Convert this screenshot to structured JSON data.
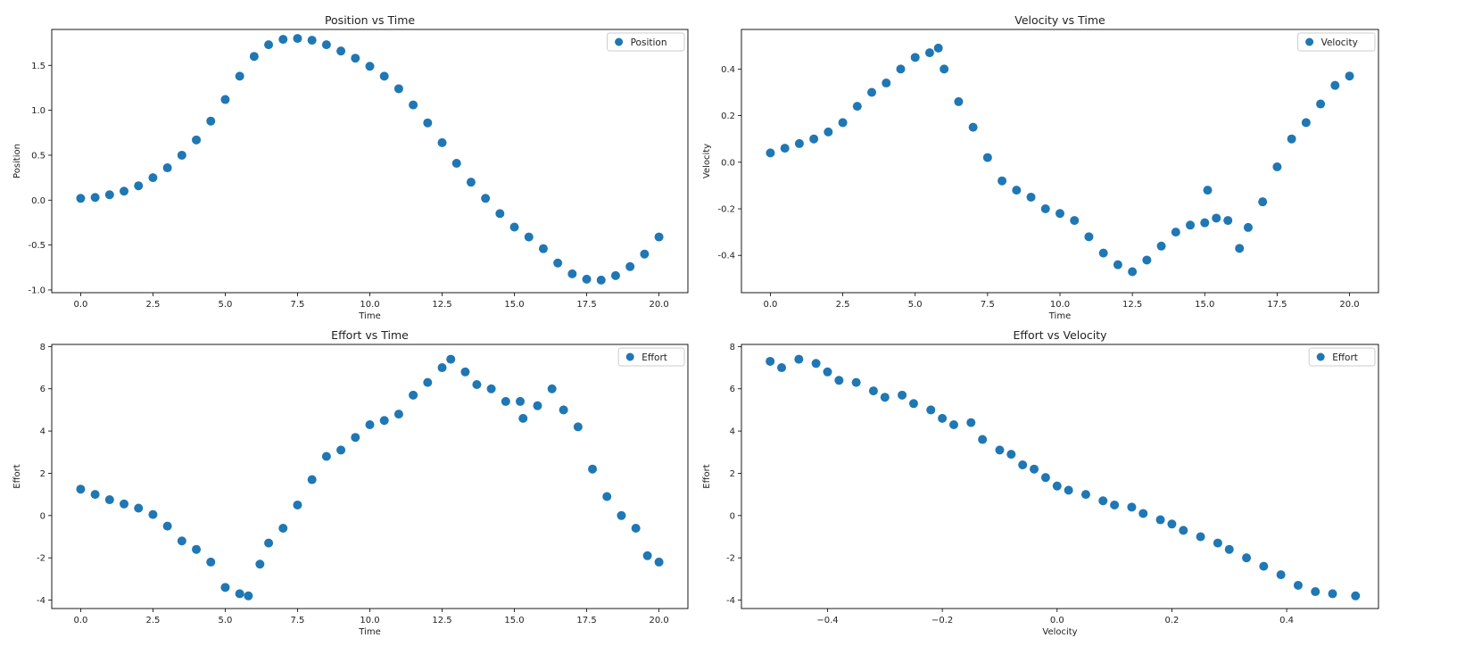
{
  "chart_data": [
    {
      "type": "scatter",
      "title": "Position vs Time",
      "xlabel": "Time",
      "ylabel": "Position",
      "xlim": [
        -1,
        21
      ],
      "ylim": [
        -1.03,
        1.9
      ],
      "xticks": [
        "0.0",
        "2.5",
        "5.0",
        "7.5",
        "10.0",
        "12.5",
        "15.0",
        "17.5",
        "20.0"
      ],
      "yticks": [
        "-1.0",
        "-0.5",
        "0.0",
        "0.5",
        "1.0",
        "1.5"
      ],
      "legend": "top-right",
      "grid": false,
      "color": "#1f77b4",
      "series": [
        {
          "name": "Position",
          "points": [
            [
              0,
              0.02
            ],
            [
              0.5,
              0.03
            ],
            [
              1,
              0.06
            ],
            [
              1.5,
              0.1
            ],
            [
              2,
              0.16
            ],
            [
              2.5,
              0.25
            ],
            [
              3,
              0.36
            ],
            [
              3.5,
              0.5
            ],
            [
              4,
              0.67
            ],
            [
              4.5,
              0.88
            ],
            [
              5,
              1.12
            ],
            [
              5.5,
              1.38
            ],
            [
              6,
              1.6
            ],
            [
              6.5,
              1.73
            ],
            [
              7,
              1.79
            ],
            [
              7.5,
              1.8
            ],
            [
              8,
              1.78
            ],
            [
              8.5,
              1.73
            ],
            [
              9,
              1.66
            ],
            [
              9.5,
              1.58
            ],
            [
              10,
              1.49
            ],
            [
              10.5,
              1.38
            ],
            [
              11,
              1.24
            ],
            [
              11.5,
              1.06
            ],
            [
              12,
              0.86
            ],
            [
              12.5,
              0.64
            ],
            [
              13,
              0.41
            ],
            [
              13.5,
              0.2
            ],
            [
              14,
              0.02
            ],
            [
              14.5,
              -0.15
            ],
            [
              15,
              -0.3
            ],
            [
              15.5,
              -0.41
            ],
            [
              16,
              -0.54
            ],
            [
              16.5,
              -0.7
            ],
            [
              17,
              -0.82
            ],
            [
              17.5,
              -0.88
            ],
            [
              18,
              -0.89
            ],
            [
              18.5,
              -0.84
            ],
            [
              19,
              -0.74
            ],
            [
              19.5,
              -0.6
            ],
            [
              20,
              -0.41
            ]
          ]
        }
      ]
    },
    {
      "type": "scatter",
      "title": "Velocity vs Time",
      "xlabel": "Time",
      "ylabel": "Velocity",
      "xlim": [
        -1,
        21
      ],
      "ylim": [
        -0.56,
        0.57
      ],
      "xticks": [
        "0.0",
        "2.5",
        "5.0",
        "7.5",
        "10.0",
        "12.5",
        "15.0",
        "17.5",
        "20.0"
      ],
      "yticks": [
        "-0.4",
        "-0.2",
        "0.0",
        "0.2",
        "0.4"
      ],
      "legend": "top-right",
      "grid": false,
      "color": "#1f77b4",
      "series": [
        {
          "name": "Velocity",
          "points": [
            [
              0,
              0.04
            ],
            [
              0.5,
              0.06
            ],
            [
              1,
              0.08
            ],
            [
              1.5,
              0.1
            ],
            [
              2,
              0.13
            ],
            [
              2.5,
              0.17
            ],
            [
              3,
              0.24
            ],
            [
              3.5,
              0.3
            ],
            [
              4,
              0.34
            ],
            [
              4.5,
              0.4
            ],
            [
              5,
              0.45
            ],
            [
              5.5,
              0.47
            ],
            [
              5.8,
              0.49
            ],
            [
              6,
              0.4
            ],
            [
              6.5,
              0.26
            ],
            [
              7,
              0.15
            ],
            [
              7.5,
              0.02
            ],
            [
              8,
              -0.08
            ],
            [
              8.5,
              -0.12
            ],
            [
              9,
              -0.15
            ],
            [
              9.5,
              -0.2
            ],
            [
              10,
              -0.22
            ],
            [
              10.5,
              -0.25
            ],
            [
              11,
              -0.32
            ],
            [
              11.5,
              -0.39
            ],
            [
              12,
              -0.44
            ],
            [
              12.5,
              -0.47
            ],
            [
              13,
              -0.42
            ],
            [
              13.5,
              -0.36
            ],
            [
              14,
              -0.3
            ],
            [
              14.5,
              -0.27
            ],
            [
              15,
              -0.26
            ],
            [
              15.1,
              -0.12
            ],
            [
              15.4,
              -0.24
            ],
            [
              15.8,
              -0.25
            ],
            [
              16.2,
              -0.37
            ],
            [
              16.5,
              -0.28
            ],
            [
              17,
              -0.17
            ],
            [
              17.5,
              -0.02
            ],
            [
              18,
              0.1
            ],
            [
              18.5,
              0.17
            ],
            [
              19,
              0.25
            ],
            [
              19.5,
              0.33
            ],
            [
              20,
              0.37
            ]
          ]
        }
      ]
    },
    {
      "type": "scatter",
      "title": "Effort vs Time",
      "xlabel": "Time",
      "ylabel": "Effort",
      "xlim": [
        -1,
        21
      ],
      "ylim": [
        -4.4,
        8.1
      ],
      "xticks": [
        "0.0",
        "2.5",
        "5.0",
        "7.5",
        "10.0",
        "12.5",
        "15.0",
        "17.5",
        "20.0"
      ],
      "yticks": [
        "-4",
        "-2",
        "0",
        "2",
        "4",
        "6",
        "8"
      ],
      "legend": "top-right",
      "grid": false,
      "color": "#1f77b4",
      "series": [
        {
          "name": "Effort",
          "points": [
            [
              0,
              1.25
            ],
            [
              0.5,
              1.0
            ],
            [
              1,
              0.75
            ],
            [
              1.5,
              0.55
            ],
            [
              2,
              0.35
            ],
            [
              2.5,
              0.05
            ],
            [
              3,
              -0.5
            ],
            [
              3.5,
              -1.2
            ],
            [
              4,
              -1.6
            ],
            [
              4.5,
              -2.2
            ],
            [
              5,
              -3.4
            ],
            [
              5.5,
              -3.7
            ],
            [
              5.8,
              -3.8
            ],
            [
              6.2,
              -2.3
            ],
            [
              6.5,
              -1.3
            ],
            [
              7,
              -0.6
            ],
            [
              7.5,
              0.5
            ],
            [
              8,
              1.7
            ],
            [
              8.5,
              2.8
            ],
            [
              9,
              3.1
            ],
            [
              9.5,
              3.7
            ],
            [
              10,
              4.3
            ],
            [
              10.5,
              4.5
            ],
            [
              11,
              4.8
            ],
            [
              11.5,
              5.7
            ],
            [
              12,
              6.3
            ],
            [
              12.5,
              7.0
            ],
            [
              12.8,
              7.4
            ],
            [
              13.3,
              6.8
            ],
            [
              13.7,
              6.2
            ],
            [
              14.2,
              6.0
            ],
            [
              14.7,
              5.4
            ],
            [
              15.2,
              5.4
            ],
            [
              15.3,
              4.6
            ],
            [
              15.8,
              5.2
            ],
            [
              16.3,
              6.0
            ],
            [
              16.7,
              5.0
            ],
            [
              17.2,
              4.2
            ],
            [
              17.7,
              2.2
            ],
            [
              18.2,
              0.9
            ],
            [
              18.7,
              0.0
            ],
            [
              19.2,
              -0.6
            ],
            [
              19.6,
              -1.9
            ],
            [
              20,
              -2.2
            ]
          ]
        }
      ]
    },
    {
      "type": "scatter",
      "title": "Effort vs Velocity",
      "xlabel": "Velocity",
      "ylabel": "Effort",
      "xlim": [
        -0.55,
        0.56
      ],
      "ylim": [
        -4.4,
        8.1
      ],
      "xticks": [
        "−0.4",
        "−0.2",
        "0.0",
        "0.2",
        "0.4"
      ],
      "yticks": [
        "-4",
        "-2",
        "0",
        "2",
        "4",
        "6",
        "8"
      ],
      "legend": "top-right",
      "grid": false,
      "color": "#1f77b4",
      "series": [
        {
          "name": "Effort",
          "points": [
            [
              -0.5,
              7.3
            ],
            [
              -0.48,
              7.0
            ],
            [
              -0.45,
              7.4
            ],
            [
              -0.42,
              7.2
            ],
            [
              -0.4,
              6.8
            ],
            [
              -0.38,
              6.4
            ],
            [
              -0.35,
              6.3
            ],
            [
              -0.32,
              5.9
            ],
            [
              -0.3,
              5.6
            ],
            [
              -0.27,
              5.7
            ],
            [
              -0.25,
              5.3
            ],
            [
              -0.22,
              5.0
            ],
            [
              -0.2,
              4.6
            ],
            [
              -0.18,
              4.3
            ],
            [
              -0.15,
              4.4
            ],
            [
              -0.13,
              3.6
            ],
            [
              -0.1,
              3.1
            ],
            [
              -0.08,
              2.9
            ],
            [
              -0.06,
              2.4
            ],
            [
              -0.04,
              2.2
            ],
            [
              -0.02,
              1.8
            ],
            [
              0,
              1.4
            ],
            [
              0.02,
              1.2
            ],
            [
              0.05,
              1.0
            ],
            [
              0.08,
              0.7
            ],
            [
              0.1,
              0.5
            ],
            [
              0.13,
              0.4
            ],
            [
              0.15,
              0.1
            ],
            [
              0.18,
              -0.2
            ],
            [
              0.2,
              -0.4
            ],
            [
              0.22,
              -0.7
            ],
            [
              0.25,
              -1.0
            ],
            [
              0.28,
              -1.3
            ],
            [
              0.3,
              -1.6
            ],
            [
              0.33,
              -2.0
            ],
            [
              0.36,
              -2.4
            ],
            [
              0.39,
              -2.8
            ],
            [
              0.42,
              -3.3
            ],
            [
              0.45,
              -3.6
            ],
            [
              0.48,
              -3.7
            ],
            [
              0.52,
              -3.8
            ]
          ]
        }
      ]
    }
  ]
}
